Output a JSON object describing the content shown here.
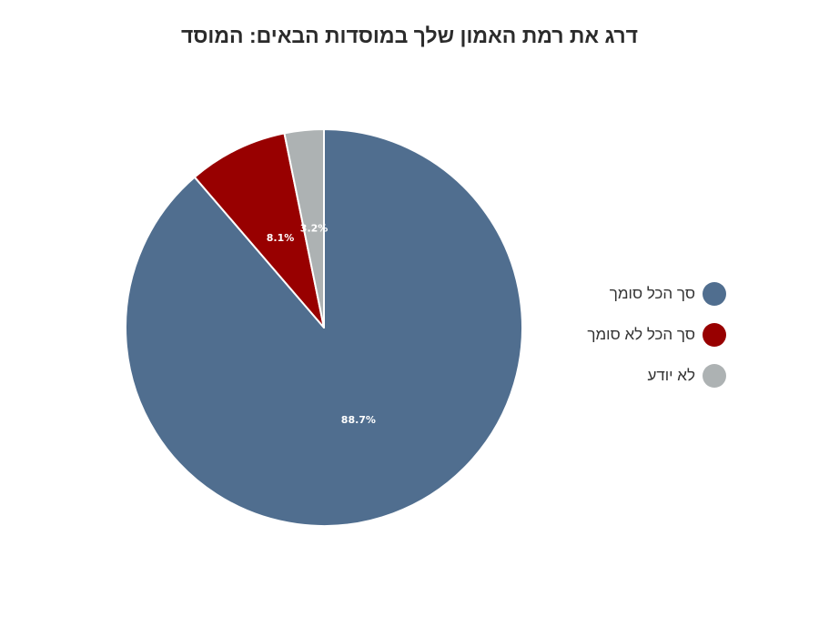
{
  "chart_data": {
    "type": "pie",
    "title": "דרג את רמת האמון שלך במוסדות הבאים: המוסד",
    "series": [
      {
        "name": "סך הכל סומך",
        "value": 88.7,
        "label": "88.7%",
        "color": "#506e8f"
      },
      {
        "name": "סך הכל לא סומך",
        "value": 8.1,
        "label": "8.1%",
        "color": "#980000"
      },
      {
        "name": "לא יודע",
        "value": 3.2,
        "label": "3.2%",
        "color": "#adb2b3"
      }
    ],
    "legend_position": "right"
  }
}
